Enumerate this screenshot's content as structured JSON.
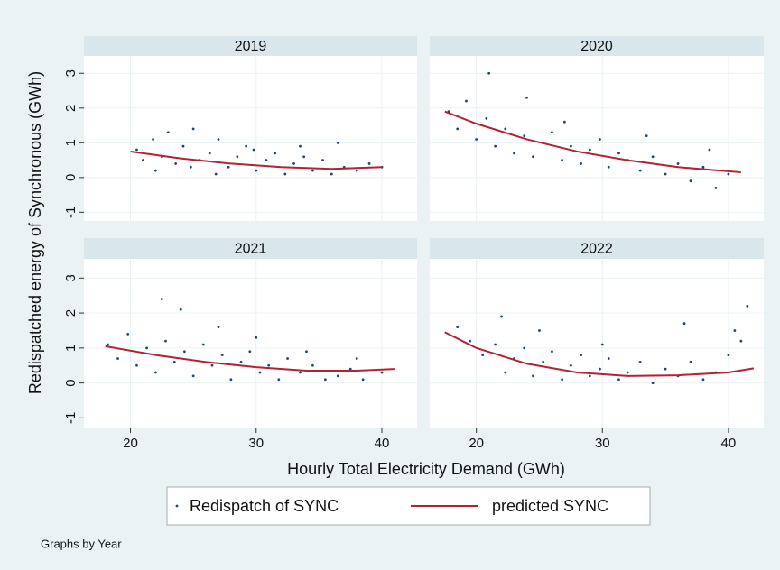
{
  "chart_data": [
    {
      "type": "scatter",
      "title": "2019",
      "xlim": [
        16.3,
        42.8
      ],
      "ylim": [
        -1.25,
        3.5
      ],
      "xticks": [
        20,
        30,
        40
      ],
      "yticks": [
        -1,
        0,
        1,
        2,
        3
      ],
      "grid": true,
      "series": [
        {
          "name": "Redispatch of SYNC",
          "style": "markers",
          "color": "#1a476f",
          "x": [
            20.5,
            21,
            21.8,
            22.5,
            23,
            23.6,
            24.2,
            25,
            25.5,
            26.3,
            27,
            27.8,
            28.5,
            29.2,
            30,
            30.8,
            31.5,
            32.3,
            33,
            33.8,
            34.5,
            35.3,
            36,
            37,
            38,
            39,
            40,
            22,
            24.8,
            26.8,
            29.8,
            33.5,
            36.5
          ],
          "values": [
            0.8,
            0.5,
            1.1,
            0.6,
            1.3,
            0.4,
            0.9,
            1.4,
            0.5,
            0.7,
            1.1,
            0.3,
            0.6,
            0.9,
            0.2,
            0.5,
            0.7,
            0.1,
            0.4,
            0.6,
            0.2,
            0.5,
            0.1,
            0.3,
            0.2,
            0.4,
            0.3,
            0.2,
            0.3,
            0.1,
            0.8,
            0.9,
            1.0
          ]
        },
        {
          "name": "predicted SYNC",
          "style": "line",
          "color": "#b22234",
          "x": [
            20,
            24,
            28,
            32,
            36,
            40
          ],
          "values": [
            0.75,
            0.55,
            0.4,
            0.3,
            0.25,
            0.3
          ]
        }
      ]
    },
    {
      "type": "scatter",
      "title": "2020",
      "xlim": [
        16.3,
        42.8
      ],
      "ylim": [
        -1.25,
        3.5
      ],
      "xticks": [
        20,
        30,
        40
      ],
      "yticks": [
        -1,
        0,
        1,
        2,
        3
      ],
      "grid": true,
      "series": [
        {
          "name": "Redispatch of SYNC",
          "style": "markers",
          "color": "#1a476f",
          "x": [
            17.8,
            18.5,
            19.2,
            20,
            20.8,
            21.5,
            22.3,
            23,
            23.8,
            24.5,
            25.3,
            26,
            26.8,
            27.5,
            28.3,
            29,
            29.8,
            30.5,
            31.3,
            32,
            33,
            34,
            35,
            36,
            37,
            38,
            39,
            40,
            21,
            24,
            27,
            33.5,
            38.5
          ],
          "values": [
            1.9,
            1.4,
            2.2,
            1.1,
            1.7,
            0.9,
            1.4,
            0.7,
            1.2,
            0.6,
            1.0,
            1.3,
            0.5,
            0.9,
            0.4,
            0.8,
            1.1,
            0.3,
            0.7,
            0.5,
            0.2,
            0.6,
            0.1,
            0.4,
            -0.1,
            0.3,
            -0.3,
            0.1,
            3.0,
            2.3,
            1.6,
            1.2,
            0.8
          ]
        },
        {
          "name": "predicted SYNC",
          "style": "line",
          "color": "#b22234",
          "x": [
            17.5,
            20,
            24,
            28,
            32,
            36,
            41
          ],
          "values": [
            1.9,
            1.55,
            1.1,
            0.75,
            0.5,
            0.3,
            0.15
          ]
        }
      ]
    },
    {
      "type": "scatter",
      "title": "2021",
      "xlim": [
        16.3,
        42.8
      ],
      "ylim": [
        -1.3,
        3.55
      ],
      "xticks": [
        20,
        30,
        40
      ],
      "yticks": [
        -1,
        0,
        1,
        2,
        3
      ],
      "grid": true,
      "series": [
        {
          "name": "Redispatch of SYNC",
          "style": "markers",
          "color": "#1a476f",
          "x": [
            18.2,
            19,
            19.8,
            20.5,
            21.3,
            22,
            22.8,
            23.5,
            24.3,
            25,
            25.8,
            26.5,
            27.3,
            28,
            28.8,
            29.5,
            30.3,
            31,
            31.8,
            32.5,
            33.5,
            34.5,
            35.5,
            36.5,
            37.5,
            38.5,
            40,
            22.5,
            24,
            27,
            30,
            34,
            38
          ],
          "values": [
            1.1,
            0.7,
            1.4,
            0.5,
            1.0,
            0.3,
            1.2,
            0.6,
            0.9,
            0.2,
            1.1,
            0.5,
            0.8,
            0.1,
            0.6,
            0.9,
            0.3,
            0.5,
            0.1,
            0.7,
            0.3,
            0.5,
            0.1,
            0.2,
            0.4,
            0.1,
            0.3,
            2.4,
            2.1,
            1.6,
            1.3,
            0.9,
            0.7
          ]
        },
        {
          "name": "predicted SYNC",
          "style": "line",
          "color": "#b22234",
          "x": [
            18,
            22,
            26,
            30,
            34,
            38,
            41
          ],
          "values": [
            1.05,
            0.8,
            0.6,
            0.45,
            0.35,
            0.35,
            0.4
          ]
        }
      ]
    },
    {
      "type": "scatter",
      "title": "2022",
      "xlim": [
        16.3,
        42.8
      ],
      "ylim": [
        -1.3,
        3.55
      ],
      "xticks": [
        20,
        30,
        40
      ],
      "yticks": [
        -1,
        0,
        1,
        2,
        3
      ],
      "grid": true,
      "series": [
        {
          "name": "Redispatch of SYNC",
          "style": "markers",
          "color": "#1a476f",
          "x": [
            18.5,
            19.5,
            20.5,
            21.5,
            22.3,
            23,
            23.8,
            24.5,
            25.3,
            26,
            26.8,
            27.5,
            28.3,
            29,
            29.8,
            30.5,
            31.3,
            32,
            33,
            34,
            35,
            36,
            37,
            38,
            39,
            40,
            41,
            41.5,
            22,
            25,
            30,
            36.5,
            40.5
          ],
          "values": [
            1.6,
            1.2,
            0.8,
            1.1,
            0.3,
            0.7,
            1.0,
            0.2,
            0.6,
            0.9,
            0.1,
            0.5,
            0.8,
            0.2,
            0.4,
            0.7,
            0.1,
            0.3,
            0.6,
            0.0,
            0.4,
            0.2,
            0.6,
            0.1,
            0.3,
            0.8,
            1.2,
            2.2,
            1.9,
            1.5,
            1.1,
            1.7,
            1.5
          ]
        },
        {
          "name": "predicted SYNC",
          "style": "line",
          "color": "#b22234",
          "x": [
            17.5,
            20,
            24,
            28,
            32,
            36,
            40,
            42
          ],
          "values": [
            1.45,
            1.0,
            0.55,
            0.3,
            0.2,
            0.22,
            0.3,
            0.42
          ]
        }
      ]
    }
  ],
  "xlabel": "Hourly Total Electricity Demand (GWh)",
  "ylabel": "Redispatched energy of Synchronous (GWh)",
  "note": "Graphs by Year"
}
